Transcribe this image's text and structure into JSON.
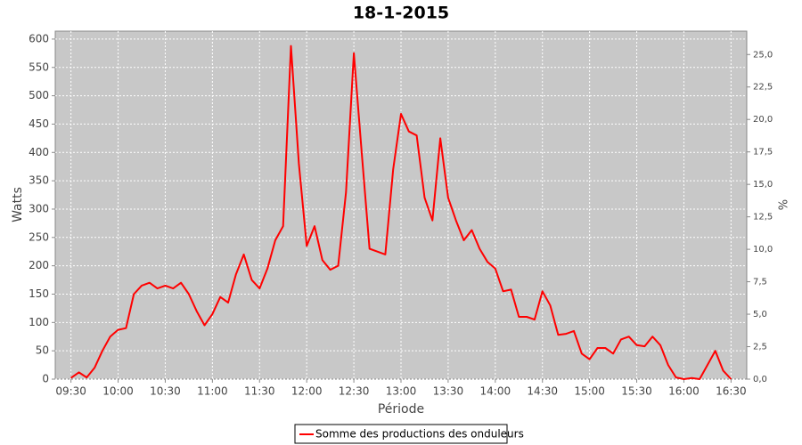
{
  "chart_data": {
    "type": "line",
    "title": "18-1-2015",
    "x_label": "Période",
    "y_label": "Watts",
    "y2_label": "%",
    "x": [
      "09:30",
      "09:35",
      "09:40",
      "09:45",
      "09:50",
      "09:55",
      "10:00",
      "10:05",
      "10:10",
      "10:15",
      "10:20",
      "10:25",
      "10:30",
      "10:35",
      "10:40",
      "10:45",
      "10:50",
      "10:55",
      "11:00",
      "11:05",
      "11:10",
      "11:15",
      "11:20",
      "11:25",
      "11:30",
      "11:35",
      "11:40",
      "11:45",
      "11:50",
      "11:55",
      "12:00",
      "12:05",
      "12:10",
      "12:15",
      "12:20",
      "12:25",
      "12:30",
      "12:35",
      "12:40",
      "12:45",
      "12:50",
      "12:55",
      "13:00",
      "13:05",
      "13:10",
      "13:15",
      "13:20",
      "13:25",
      "13:30",
      "13:35",
      "13:40",
      "13:45",
      "13:50",
      "13:55",
      "14:00",
      "14:05",
      "14:10",
      "14:15",
      "14:20",
      "14:25",
      "14:30",
      "14:35",
      "14:40",
      "14:45",
      "14:50",
      "14:55",
      "15:00",
      "15:05",
      "15:10",
      "15:15",
      "15:20",
      "15:25",
      "15:30",
      "15:35",
      "15:40",
      "15:45",
      "15:50",
      "15:55",
      "16:00",
      "16:05",
      "16:10",
      "16:15",
      "16:20",
      "16:25",
      "16:30"
    ],
    "series": [
      {
        "name": "Somme des productions des onduleurs",
        "color": "#ff0000",
        "values": [
          2,
          12,
          3,
          20,
          50,
          75,
          87,
          90,
          150,
          165,
          170,
          160,
          165,
          160,
          170,
          150,
          120,
          95,
          115,
          145,
          135,
          185,
          220,
          175,
          160,
          195,
          245,
          270,
          588,
          380,
          235,
          270,
          210,
          193,
          200,
          330,
          575,
          400,
          230,
          225,
          220,
          370,
          468,
          437,
          430,
          320,
          280,
          425,
          320,
          280,
          245,
          263,
          230,
          207,
          195,
          155,
          158,
          110,
          110,
          105,
          155,
          130,
          78,
          80,
          85,
          45,
          35,
          55,
          55,
          45,
          70,
          75,
          60,
          58,
          75,
          60,
          25,
          3,
          0,
          2,
          0,
          25,
          50,
          15,
          0
        ]
      }
    ],
    "xlim": [
      "09:20",
      "16:40"
    ],
    "xticks": [
      "09:30",
      "10:00",
      "10:30",
      "11:00",
      "11:30",
      "12:00",
      "12:30",
      "13:00",
      "13:30",
      "14:00",
      "14:30",
      "15:00",
      "15:30",
      "16:00",
      "16:30"
    ],
    "ylim": [
      0,
      614
    ],
    "yticks": [
      0,
      50,
      100,
      150,
      200,
      250,
      300,
      350,
      400,
      450,
      500,
      550,
      600
    ],
    "y2lim": [
      0,
      26.8
    ],
    "y2ticks": [
      {
        "value": 0,
        "label": "0,0"
      },
      {
        "value": 2.5,
        "label": "2,5"
      },
      {
        "value": 5,
        "label": "5,0"
      },
      {
        "value": 7.5,
        "label": "7,5"
      },
      {
        "value": 10,
        "label": "10,0"
      },
      {
        "value": 12.5,
        "label": "12,5"
      },
      {
        "value": 15,
        "label": "15,0"
      },
      {
        "value": 17.5,
        "label": "17,5"
      },
      {
        "value": 20,
        "label": "20,0"
      },
      {
        "value": 22.5,
        "label": "22,5"
      },
      {
        "value": 25,
        "label": "25,0"
      }
    ],
    "grid": true
  }
}
